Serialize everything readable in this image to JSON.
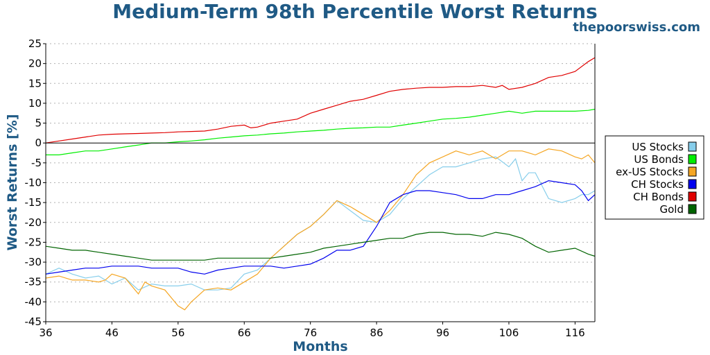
{
  "chart_data": {
    "type": "line",
    "title": "Medium-Term 98th Percentile Worst Returns",
    "source": "thepoorswiss.com",
    "xlabel": "Months",
    "ylabel": "Worst Returns [%]",
    "xlim": [
      36,
      119
    ],
    "ylim": [
      -45,
      25
    ],
    "xticks": [
      36,
      46,
      56,
      66,
      76,
      86,
      96,
      106,
      116
    ],
    "yticks": [
      25,
      20,
      15,
      10,
      5,
      0,
      -5,
      -10,
      -15,
      -20,
      -25,
      -30,
      -35,
      -40,
      -45
    ],
    "grid": "horizontal dotted",
    "legend_position": "right",
    "series": [
      {
        "name": "US Stocks",
        "color": "#87ceeb",
        "points": [
          [
            36,
            -33
          ],
          [
            38,
            -31.5
          ],
          [
            40,
            -33
          ],
          [
            42,
            -34
          ],
          [
            44,
            -33.5
          ],
          [
            46,
            -35.5
          ],
          [
            48,
            -34
          ],
          [
            50,
            -37
          ],
          [
            52,
            -35.5
          ],
          [
            54,
            -36
          ],
          [
            56,
            -36
          ],
          [
            58,
            -35.5
          ],
          [
            60,
            -37
          ],
          [
            62,
            -37
          ],
          [
            64,
            -36.5
          ],
          [
            66,
            -33
          ],
          [
            68,
            -32
          ],
          [
            70,
            -29
          ],
          [
            72,
            -26
          ],
          [
            74,
            -23
          ],
          [
            76,
            -21
          ],
          [
            78,
            -18
          ],
          [
            80,
            -14.5
          ],
          [
            82,
            -17
          ],
          [
            84,
            -19.5
          ],
          [
            86,
            -20
          ],
          [
            88,
            -18
          ],
          [
            90,
            -14
          ],
          [
            92,
            -11
          ],
          [
            94,
            -8
          ],
          [
            96,
            -6
          ],
          [
            98,
            -6
          ],
          [
            100,
            -5
          ],
          [
            102,
            -4
          ],
          [
            104,
            -3.5
          ],
          [
            106,
            -6
          ],
          [
            107,
            -4
          ],
          [
            108,
            -9.5
          ],
          [
            109,
            -7.5
          ],
          [
            110,
            -7.5
          ],
          [
            112,
            -14
          ],
          [
            114,
            -15
          ],
          [
            116,
            -14
          ],
          [
            117,
            -13
          ],
          [
            118,
            -13
          ],
          [
            119,
            -12
          ]
        ]
      },
      {
        "name": "US Bonds",
        "color": "#00ee00",
        "points": [
          [
            36,
            -3
          ],
          [
            38,
            -3
          ],
          [
            40,
            -2.5
          ],
          [
            42,
            -2
          ],
          [
            44,
            -2
          ],
          [
            46,
            -1.5
          ],
          [
            48,
            -1
          ],
          [
            50,
            -0.5
          ],
          [
            52,
            0
          ],
          [
            54,
            0
          ],
          [
            56,
            0.3
          ],
          [
            58,
            0.5
          ],
          [
            60,
            0.8
          ],
          [
            62,
            1.2
          ],
          [
            64,
            1.5
          ],
          [
            66,
            1.8
          ],
          [
            68,
            2
          ],
          [
            70,
            2.3
          ],
          [
            72,
            2.5
          ],
          [
            74,
            2.8
          ],
          [
            76,
            3
          ],
          [
            78,
            3.2
          ],
          [
            80,
            3.5
          ],
          [
            82,
            3.7
          ],
          [
            84,
            3.8
          ],
          [
            86,
            4
          ],
          [
            88,
            4
          ],
          [
            90,
            4.5
          ],
          [
            92,
            5
          ],
          [
            94,
            5.5
          ],
          [
            96,
            6
          ],
          [
            98,
            6.2
          ],
          [
            100,
            6.5
          ],
          [
            102,
            7
          ],
          [
            104,
            7.5
          ],
          [
            106,
            8
          ],
          [
            108,
            7.5
          ],
          [
            110,
            8
          ],
          [
            112,
            8
          ],
          [
            114,
            8
          ],
          [
            116,
            8
          ],
          [
            118,
            8.2
          ],
          [
            119,
            8.5
          ]
        ]
      },
      {
        "name": "ex-US Stocks",
        "color": "#f5a623",
        "points": [
          [
            36,
            -34
          ],
          [
            38,
            -33.5
          ],
          [
            40,
            -34.5
          ],
          [
            42,
            -34.5
          ],
          [
            44,
            -35
          ],
          [
            45,
            -34.5
          ],
          [
            46,
            -33
          ],
          [
            48,
            -34
          ],
          [
            50,
            -38
          ],
          [
            51,
            -35
          ],
          [
            52,
            -36
          ],
          [
            54,
            -37
          ],
          [
            56,
            -41
          ],
          [
            57,
            -42
          ],
          [
            58,
            -40
          ],
          [
            60,
            -37
          ],
          [
            62,
            -36.5
          ],
          [
            64,
            -37
          ],
          [
            66,
            -35
          ],
          [
            68,
            -33
          ],
          [
            70,
            -29
          ],
          [
            72,
            -26
          ],
          [
            74,
            -23
          ],
          [
            76,
            -21
          ],
          [
            78,
            -18
          ],
          [
            80,
            -14.5
          ],
          [
            82,
            -16
          ],
          [
            84,
            -18
          ],
          [
            86,
            -20
          ],
          [
            88,
            -17
          ],
          [
            90,
            -13
          ],
          [
            92,
            -8
          ],
          [
            94,
            -5
          ],
          [
            96,
            -3.5
          ],
          [
            98,
            -2
          ],
          [
            100,
            -3
          ],
          [
            102,
            -2
          ],
          [
            104,
            -4
          ],
          [
            106,
            -2
          ],
          [
            108,
            -2
          ],
          [
            110,
            -3
          ],
          [
            112,
            -1.5
          ],
          [
            114,
            -2
          ],
          [
            116,
            -3.5
          ],
          [
            117,
            -4
          ],
          [
            118,
            -3
          ],
          [
            119,
            -5
          ]
        ]
      },
      {
        "name": "CH Stocks",
        "color": "#0000ee",
        "points": [
          [
            36,
            -33
          ],
          [
            38,
            -32.5
          ],
          [
            40,
            -32
          ],
          [
            42,
            -31.5
          ],
          [
            44,
            -31.5
          ],
          [
            46,
            -31
          ],
          [
            48,
            -31
          ],
          [
            50,
            -31
          ],
          [
            52,
            -31.5
          ],
          [
            54,
            -31.5
          ],
          [
            56,
            -31.5
          ],
          [
            58,
            -32.5
          ],
          [
            60,
            -33
          ],
          [
            62,
            -32
          ],
          [
            64,
            -31.5
          ],
          [
            66,
            -31
          ],
          [
            68,
            -31
          ],
          [
            70,
            -31
          ],
          [
            72,
            -31.5
          ],
          [
            74,
            -31
          ],
          [
            76,
            -30.5
          ],
          [
            78,
            -29
          ],
          [
            80,
            -27
          ],
          [
            82,
            -27
          ],
          [
            84,
            -26
          ],
          [
            86,
            -21
          ],
          [
            88,
            -15
          ],
          [
            90,
            -13
          ],
          [
            92,
            -12
          ],
          [
            94,
            -12
          ],
          [
            96,
            -12.5
          ],
          [
            98,
            -13
          ],
          [
            100,
            -14
          ],
          [
            102,
            -14
          ],
          [
            104,
            -13
          ],
          [
            106,
            -13
          ],
          [
            108,
            -12
          ],
          [
            110,
            -11
          ],
          [
            112,
            -9.5
          ],
          [
            114,
            -10
          ],
          [
            116,
            -10.5
          ],
          [
            117,
            -12
          ],
          [
            118,
            -14.5
          ],
          [
            119,
            -13
          ]
        ]
      },
      {
        "name": "CH Bonds",
        "color": "#e00000",
        "points": [
          [
            36,
            0
          ],
          [
            38,
            0.5
          ],
          [
            40,
            1
          ],
          [
            42,
            1.5
          ],
          [
            44,
            2
          ],
          [
            46,
            2.2
          ],
          [
            48,
            2.3
          ],
          [
            50,
            2.4
          ],
          [
            52,
            2.5
          ],
          [
            54,
            2.6
          ],
          [
            56,
            2.8
          ],
          [
            58,
            2.9
          ],
          [
            60,
            3
          ],
          [
            62,
            3.5
          ],
          [
            64,
            4.2
          ],
          [
            66,
            4.5
          ],
          [
            67,
            3.8
          ],
          [
            68,
            4
          ],
          [
            70,
            5
          ],
          [
            72,
            5.5
          ],
          [
            74,
            6
          ],
          [
            76,
            7.5
          ],
          [
            78,
            8.5
          ],
          [
            80,
            9.5
          ],
          [
            82,
            10.5
          ],
          [
            84,
            11
          ],
          [
            86,
            12
          ],
          [
            88,
            13
          ],
          [
            90,
            13.5
          ],
          [
            92,
            13.8
          ],
          [
            94,
            14
          ],
          [
            96,
            14
          ],
          [
            98,
            14.2
          ],
          [
            100,
            14.2
          ],
          [
            102,
            14.5
          ],
          [
            104,
            14
          ],
          [
            105,
            14.5
          ],
          [
            106,
            13.5
          ],
          [
            108,
            14
          ],
          [
            110,
            15
          ],
          [
            112,
            16.5
          ],
          [
            114,
            17
          ],
          [
            116,
            18
          ],
          [
            118,
            20.5
          ],
          [
            119,
            21.5
          ]
        ]
      },
      {
        "name": "Gold",
        "color": "#006400",
        "points": [
          [
            36,
            -26
          ],
          [
            38,
            -26.5
          ],
          [
            40,
            -27
          ],
          [
            42,
            -27
          ],
          [
            44,
            -27.5
          ],
          [
            46,
            -28
          ],
          [
            48,
            -28.5
          ],
          [
            50,
            -29
          ],
          [
            52,
            -29.5
          ],
          [
            54,
            -29.5
          ],
          [
            56,
            -29.5
          ],
          [
            58,
            -29.5
          ],
          [
            60,
            -29.5
          ],
          [
            62,
            -29
          ],
          [
            64,
            -29
          ],
          [
            66,
            -29
          ],
          [
            68,
            -29
          ],
          [
            70,
            -29
          ],
          [
            72,
            -28.5
          ],
          [
            74,
            -28
          ],
          [
            76,
            -27.5
          ],
          [
            78,
            -26.5
          ],
          [
            80,
            -26
          ],
          [
            82,
            -25.5
          ],
          [
            84,
            -25
          ],
          [
            86,
            -24.5
          ],
          [
            88,
            -24
          ],
          [
            90,
            -24
          ],
          [
            92,
            -23
          ],
          [
            94,
            -22.5
          ],
          [
            96,
            -22.5
          ],
          [
            98,
            -23
          ],
          [
            100,
            -23
          ],
          [
            102,
            -23.5
          ],
          [
            104,
            -22.5
          ],
          [
            106,
            -23
          ],
          [
            108,
            -24
          ],
          [
            110,
            -26
          ],
          [
            112,
            -27.5
          ],
          [
            114,
            -27
          ],
          [
            116,
            -26.5
          ],
          [
            118,
            -28
          ],
          [
            119,
            -28.5
          ]
        ]
      }
    ]
  }
}
